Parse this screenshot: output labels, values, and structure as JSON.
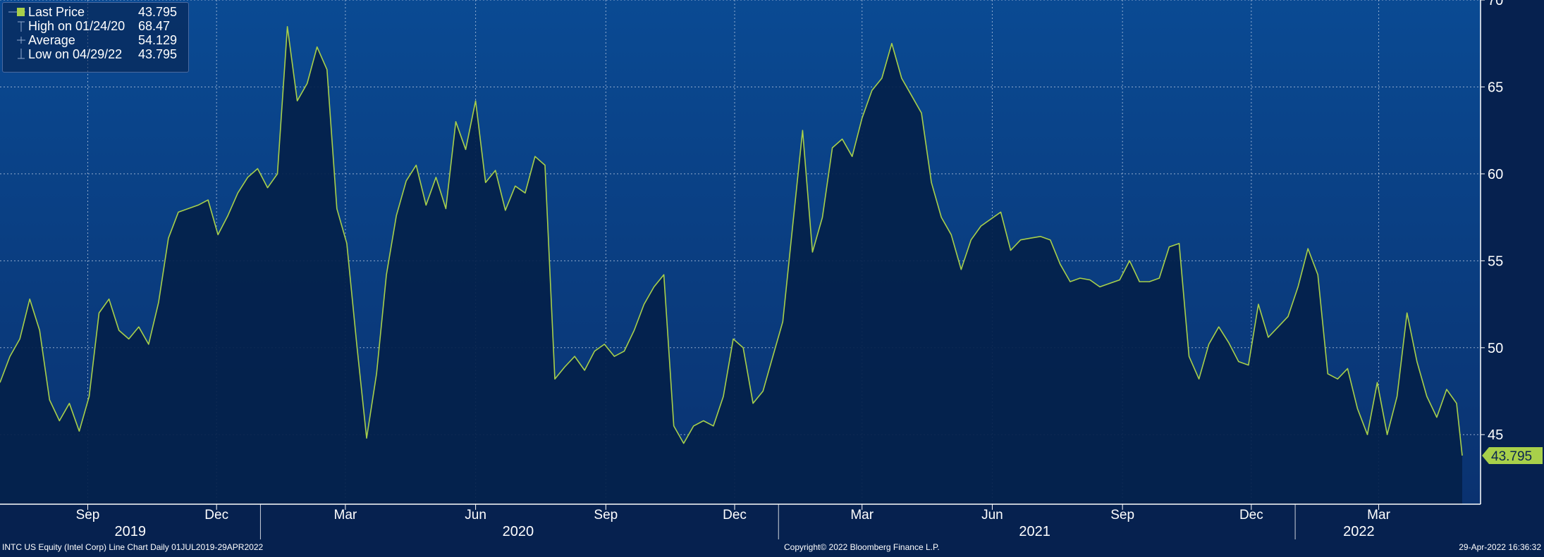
{
  "chart_data": {
    "type": "line",
    "x_range": [
      "2019-07-01",
      "2022-04-29"
    ],
    "ylim": [
      41,
      70
    ],
    "y_ticks": [
      45,
      50,
      55,
      60,
      65,
      70
    ],
    "y_tick_labels": [
      "45",
      "50",
      "55",
      "60",
      "65",
      "70"
    ],
    "month_ticks": [
      {
        "date": "2019-09-01",
        "label": "Sep"
      },
      {
        "date": "2019-12-01",
        "label": "Dec"
      },
      {
        "date": "2020-03-01",
        "label": "Mar"
      },
      {
        "date": "2020-06-01",
        "label": "Jun"
      },
      {
        "date": "2020-09-01",
        "label": "Sep"
      },
      {
        "date": "2020-12-01",
        "label": "Dec"
      },
      {
        "date": "2021-03-01",
        "label": "Mar"
      },
      {
        "date": "2021-06-01",
        "label": "Jun"
      },
      {
        "date": "2021-09-01",
        "label": "Sep"
      },
      {
        "date": "2021-12-01",
        "label": "Dec"
      },
      {
        "date": "2022-03-01",
        "label": "Mar"
      }
    ],
    "year_labels": [
      {
        "date": "2019-10-01",
        "label": "2019"
      },
      {
        "date": "2020-07-01",
        "label": "2020"
      },
      {
        "date": "2021-07-01",
        "label": "2021"
      },
      {
        "date": "2022-02-15",
        "label": "2022"
      }
    ],
    "year_boundaries": [
      "2020-01-01",
      "2021-01-01",
      "2022-01-01"
    ],
    "grid": true,
    "line_color": "#a8d04a",
    "legend_placement": "top-left",
    "legend": [
      {
        "label": "Last Price",
        "value": "43.795",
        "marker": "square"
      },
      {
        "label": "High on 01/24/20",
        "value": "68.47",
        "marker": "high"
      },
      {
        "label": "Average",
        "value": "54.129",
        "marker": "avg"
      },
      {
        "label": "Low on 04/29/22",
        "value": "43.795",
        "marker": "low"
      }
    ],
    "last_value_label": "43.795",
    "series": [
      {
        "points": [
          [
            "2019-07-01",
            48.0
          ],
          [
            "2019-07-08",
            49.5
          ],
          [
            "2019-07-15",
            50.5
          ],
          [
            "2019-07-22",
            52.8
          ],
          [
            "2019-07-29",
            51.0
          ],
          [
            "2019-08-05",
            47.0
          ],
          [
            "2019-08-12",
            45.8
          ],
          [
            "2019-08-19",
            46.8
          ],
          [
            "2019-08-26",
            45.2
          ],
          [
            "2019-09-02",
            47.2
          ],
          [
            "2019-09-09",
            52.0
          ],
          [
            "2019-09-16",
            52.8
          ],
          [
            "2019-09-23",
            51.0
          ],
          [
            "2019-09-30",
            50.5
          ],
          [
            "2019-10-07",
            51.2
          ],
          [
            "2019-10-14",
            50.2
          ],
          [
            "2019-10-21",
            52.6
          ],
          [
            "2019-10-28",
            56.3
          ],
          [
            "2019-11-04",
            57.8
          ],
          [
            "2019-11-11",
            58.0
          ],
          [
            "2019-11-18",
            58.2
          ],
          [
            "2019-11-25",
            58.5
          ],
          [
            "2019-12-02",
            56.5
          ],
          [
            "2019-12-09",
            57.6
          ],
          [
            "2019-12-16",
            58.9
          ],
          [
            "2019-12-23",
            59.8
          ],
          [
            "2019-12-30",
            60.3
          ],
          [
            "2020-01-06",
            59.2
          ],
          [
            "2020-01-13",
            60.0
          ],
          [
            "2020-01-20",
            68.47
          ],
          [
            "2020-01-27",
            64.2
          ],
          [
            "2020-02-03",
            65.2
          ],
          [
            "2020-02-10",
            67.3
          ],
          [
            "2020-02-17",
            66.0
          ],
          [
            "2020-02-24",
            58.0
          ],
          [
            "2020-03-02",
            56.0
          ],
          [
            "2020-03-09",
            50.2
          ],
          [
            "2020-03-16",
            44.8
          ],
          [
            "2020-03-23",
            48.5
          ],
          [
            "2020-03-30",
            54.2
          ],
          [
            "2020-04-06",
            57.6
          ],
          [
            "2020-04-13",
            59.6
          ],
          [
            "2020-04-20",
            60.5
          ],
          [
            "2020-04-27",
            58.2
          ],
          [
            "2020-05-04",
            59.8
          ],
          [
            "2020-05-11",
            58.0
          ],
          [
            "2020-05-18",
            63.0
          ],
          [
            "2020-05-25",
            61.4
          ],
          [
            "2020-06-01",
            64.2
          ],
          [
            "2020-06-08",
            59.5
          ],
          [
            "2020-06-15",
            60.2
          ],
          [
            "2020-06-22",
            57.9
          ],
          [
            "2020-06-29",
            59.3
          ],
          [
            "2020-07-06",
            58.9
          ],
          [
            "2020-07-13",
            61.0
          ],
          [
            "2020-07-20",
            60.5
          ],
          [
            "2020-07-27",
            48.2
          ],
          [
            "2020-08-03",
            48.9
          ],
          [
            "2020-08-10",
            49.5
          ],
          [
            "2020-08-17",
            48.7
          ],
          [
            "2020-08-24",
            49.8
          ],
          [
            "2020-08-31",
            50.2
          ],
          [
            "2020-09-07",
            49.5
          ],
          [
            "2020-09-14",
            49.8
          ],
          [
            "2020-09-21",
            51.0
          ],
          [
            "2020-09-28",
            52.5
          ],
          [
            "2020-10-05",
            53.5
          ],
          [
            "2020-10-12",
            54.2
          ],
          [
            "2020-10-19",
            45.5
          ],
          [
            "2020-10-26",
            44.5
          ],
          [
            "2020-11-02",
            45.5
          ],
          [
            "2020-11-09",
            45.8
          ],
          [
            "2020-11-16",
            45.5
          ],
          [
            "2020-11-23",
            47.2
          ],
          [
            "2020-11-30",
            50.5
          ],
          [
            "2020-12-07",
            50.0
          ],
          [
            "2020-12-14",
            46.8
          ],
          [
            "2020-12-21",
            47.5
          ],
          [
            "2020-12-28",
            49.5
          ],
          [
            "2021-01-04",
            51.5
          ],
          [
            "2021-01-11",
            57.0
          ],
          [
            "2021-01-18",
            62.5
          ],
          [
            "2021-01-25",
            55.5
          ],
          [
            "2021-02-01",
            57.5
          ],
          [
            "2021-02-08",
            61.5
          ],
          [
            "2021-02-15",
            62.0
          ],
          [
            "2021-02-22",
            61.0
          ],
          [
            "2021-03-01",
            63.2
          ],
          [
            "2021-03-08",
            64.8
          ],
          [
            "2021-03-15",
            65.5
          ],
          [
            "2021-03-22",
            67.5
          ],
          [
            "2021-03-29",
            65.5
          ],
          [
            "2021-04-05",
            64.5
          ],
          [
            "2021-04-12",
            63.5
          ],
          [
            "2021-04-19",
            59.5
          ],
          [
            "2021-04-26",
            57.5
          ],
          [
            "2021-05-03",
            56.5
          ],
          [
            "2021-05-10",
            54.5
          ],
          [
            "2021-05-17",
            56.2
          ],
          [
            "2021-05-24",
            57.0
          ],
          [
            "2021-05-31",
            57.4
          ],
          [
            "2021-06-07",
            57.8
          ],
          [
            "2021-06-14",
            55.6
          ],
          [
            "2021-06-21",
            56.2
          ],
          [
            "2021-06-28",
            56.3
          ],
          [
            "2021-07-05",
            56.4
          ],
          [
            "2021-07-12",
            56.2
          ],
          [
            "2021-07-19",
            54.8
          ],
          [
            "2021-07-26",
            53.8
          ],
          [
            "2021-08-02",
            54.0
          ],
          [
            "2021-08-09",
            53.9
          ],
          [
            "2021-08-16",
            53.5
          ],
          [
            "2021-08-23",
            53.7
          ],
          [
            "2021-08-30",
            53.9
          ],
          [
            "2021-09-06",
            55.0
          ],
          [
            "2021-09-13",
            53.8
          ],
          [
            "2021-09-20",
            53.8
          ],
          [
            "2021-09-27",
            54.0
          ],
          [
            "2021-10-04",
            55.8
          ],
          [
            "2021-10-11",
            56.0
          ],
          [
            "2021-10-18",
            49.5
          ],
          [
            "2021-10-25",
            48.2
          ],
          [
            "2021-11-01",
            50.2
          ],
          [
            "2021-11-08",
            51.2
          ],
          [
            "2021-11-15",
            50.3
          ],
          [
            "2021-11-22",
            49.2
          ],
          [
            "2021-11-29",
            49.0
          ],
          [
            "2021-12-06",
            52.5
          ],
          [
            "2021-12-13",
            50.6
          ],
          [
            "2021-12-20",
            51.2
          ],
          [
            "2021-12-27",
            51.8
          ],
          [
            "2022-01-03",
            53.5
          ],
          [
            "2022-01-10",
            55.7
          ],
          [
            "2022-01-17",
            54.2
          ],
          [
            "2022-01-24",
            48.5
          ],
          [
            "2022-01-31",
            48.2
          ],
          [
            "2022-02-07",
            48.8
          ],
          [
            "2022-02-14",
            46.5
          ],
          [
            "2022-02-21",
            45.0
          ],
          [
            "2022-02-28",
            48.0
          ],
          [
            "2022-03-07",
            45.0
          ],
          [
            "2022-03-14",
            47.2
          ],
          [
            "2022-03-21",
            52.0
          ],
          [
            "2022-03-28",
            49.2
          ],
          [
            "2022-04-04",
            47.2
          ],
          [
            "2022-04-11",
            46.0
          ],
          [
            "2022-04-18",
            47.6
          ],
          [
            "2022-04-25",
            46.8
          ],
          [
            "2022-04-29",
            43.795
          ]
        ]
      }
    ]
  },
  "footer": {
    "left": "INTC US Equity (Intel Corp) Line Chart  Daily 01JUL2019-29APR2022",
    "center": "Copyright© 2022 Bloomberg Finance L.P.",
    "right": "29-Apr-2022 16:36:32"
  }
}
